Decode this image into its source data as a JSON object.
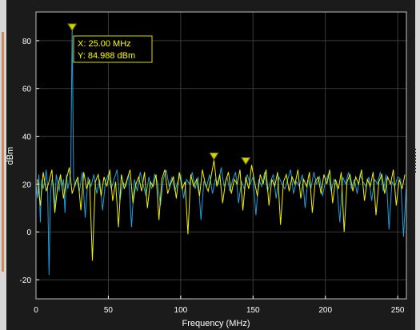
{
  "chart_data": {
    "type": "line",
    "title": "",
    "xlabel": "Frequency (MHz)",
    "ylabel": "dBm",
    "xlim": [
      0,
      256
    ],
    "ylim": [
      -28,
      92
    ],
    "xticks": [
      0,
      50,
      100,
      150,
      200,
      250
    ],
    "yticks": [
      -20,
      0,
      20,
      40,
      60,
      80
    ],
    "grid": true,
    "background": "#000000",
    "series": [
      {
        "color": "#1f9fe0",
        "x": [
          0,
          1,
          2,
          3,
          4,
          5,
          6,
          7,
          8,
          9,
          10,
          11,
          12,
          13,
          14,
          15,
          16,
          17,
          18,
          19,
          20,
          21,
          22,
          23,
          24,
          25,
          26,
          27,
          28,
          29,
          30,
          32,
          34,
          36,
          38,
          40,
          42,
          44,
          46,
          48,
          50,
          52,
          54,
          56,
          58,
          60,
          62,
          64,
          66,
          68,
          70,
          72,
          74,
          76,
          78,
          80,
          82,
          84,
          86,
          88,
          90,
          92,
          94,
          96,
          98,
          100,
          102,
          104,
          106,
          108,
          110,
          112,
          114,
          116,
          118,
          120,
          122,
          124,
          126,
          128,
          130,
          132,
          134,
          136,
          138,
          140,
          142,
          144,
          146,
          148,
          150,
          152,
          154,
          156,
          158,
          160,
          162,
          164,
          166,
          168,
          170,
          172,
          174,
          176,
          178,
          180,
          182,
          184,
          186,
          188,
          190,
          192,
          194,
          196,
          198,
          200,
          202,
          204,
          206,
          208,
          210,
          212,
          214,
          216,
          218,
          220,
          222,
          224,
          226,
          228,
          230,
          232,
          234,
          236,
          238,
          240,
          242,
          244,
          246,
          248,
          250,
          252,
          254,
          256
        ],
        "y": [
          20,
          14,
          24,
          4,
          22,
          18,
          21,
          26,
          19,
          -18,
          16,
          22,
          20,
          10,
          24,
          21,
          17,
          23,
          19,
          22,
          8,
          24,
          18,
          21,
          25,
          85,
          23,
          19,
          22,
          20,
          17,
          25,
          6,
          23,
          19,
          24,
          16,
          22,
          9,
          21,
          24,
          18,
          22,
          26,
          13,
          21,
          19,
          24,
          2,
          22,
          17,
          25,
          20,
          15,
          23,
          18,
          24,
          21,
          11,
          22,
          26,
          19,
          23,
          17,
          21,
          24,
          14,
          22,
          20,
          25,
          18,
          23,
          5,
          21,
          19,
          24,
          16,
          22,
          20,
          27,
          19,
          23,
          17,
          22,
          25,
          12,
          21,
          18,
          24,
          20,
          23,
          7,
          22,
          19,
          25,
          17,
          21,
          24,
          14,
          23,
          20,
          18,
          22,
          26,
          16,
          21,
          19,
          24,
          10,
          22,
          18,
          25,
          20,
          23,
          15,
          21,
          24,
          17,
          22,
          19,
          4,
          23,
          20,
          25,
          18,
          22,
          16,
          24,
          21,
          19,
          23,
          13,
          22,
          20,
          25,
          17,
          24,
          1,
          21,
          19,
          23,
          22,
          -2,
          20
        ]
      },
      {
        "color": "#f0f000",
        "x": [
          1,
          3,
          5,
          7,
          9,
          11,
          13,
          15,
          17,
          19,
          21,
          23,
          25,
          27,
          29,
          31,
          33,
          35,
          37,
          39,
          41,
          43,
          45,
          47,
          49,
          51,
          53,
          55,
          57,
          59,
          61,
          63,
          65,
          67,
          69,
          71,
          73,
          75,
          77,
          79,
          81,
          83,
          85,
          87,
          89,
          91,
          93,
          95,
          97,
          99,
          101,
          103,
          105,
          107,
          109,
          111,
          113,
          115,
          117,
          119,
          121,
          123,
          125,
          127,
          129,
          131,
          133,
          135,
          137,
          139,
          141,
          143,
          145,
          147,
          149,
          151,
          153,
          155,
          157,
          159,
          161,
          163,
          165,
          167,
          169,
          171,
          173,
          175,
          177,
          179,
          181,
          183,
          185,
          187,
          189,
          191,
          193,
          195,
          197,
          199,
          201,
          203,
          205,
          207,
          209,
          211,
          213,
          215,
          217,
          219,
          221,
          223,
          225,
          227,
          229,
          231,
          233,
          235,
          237,
          239,
          241,
          243,
          245,
          247,
          249,
          251,
          253,
          255
        ],
        "y": [
          22,
          11,
          25,
          17,
          21,
          26,
          8,
          19,
          24,
          14,
          22,
          27,
          16,
          20,
          23,
          9,
          25,
          18,
          22,
          -12,
          21,
          24,
          15,
          23,
          19,
          26,
          13,
          21,
          2,
          24,
          18,
          22,
          26,
          12,
          20,
          23,
          17,
          25,
          10,
          21,
          19,
          24,
          5,
          22,
          26,
          16,
          20,
          23,
          14,
          25,
          18,
          21,
          -1,
          24,
          19,
          22,
          15,
          26,
          20,
          17,
          23,
          30,
          19,
          24,
          12,
          21,
          25,
          16,
          22,
          20,
          26,
          9,
          23,
          18,
          28,
          21,
          15,
          24,
          20,
          26,
          11,
          22,
          19,
          25,
          3,
          21,
          24,
          17,
          23,
          20,
          26,
          14,
          22,
          19,
          25,
          8,
          21,
          23,
          16,
          24,
          20,
          26,
          12,
          22,
          18,
          25,
          0,
          21,
          24,
          17,
          23,
          20,
          26,
          13,
          22,
          19,
          25,
          7,
          21,
          24,
          16,
          23,
          20,
          26,
          11,
          22,
          18,
          24
        ]
      }
    ],
    "markers": [
      {
        "x": 25,
        "y": 85
      },
      {
        "x": 123,
        "y": 31
      },
      {
        "x": 145,
        "y": 29
      }
    ],
    "datatip": {
      "x_text": "X: 25.00 MHz",
      "y_text": "Y:  84.988 dBm"
    }
  }
}
